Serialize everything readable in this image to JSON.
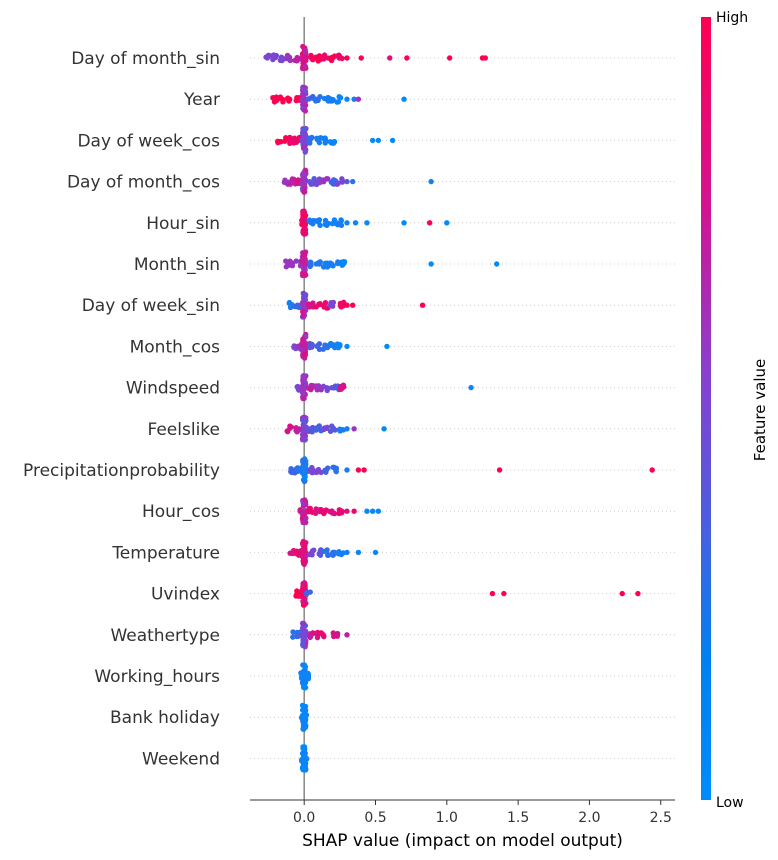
{
  "chart_data": {
    "type": "scatter",
    "subtype": "shap-beeswarm",
    "title": "",
    "xlabel": "SHAP value (impact on model output)",
    "ylabel": "",
    "xlim": [
      -0.38,
      2.6
    ],
    "xticks": [
      "0.0",
      "0.5",
      "1.0",
      "1.5",
      "2.0",
      "2.5"
    ],
    "grid": "horizontal dotted guides per feature",
    "colorbar": {
      "title": "Feature value",
      "high_label": "High",
      "low_label": "Low",
      "high_color": "#ff0051",
      "low_color": "#008bfb"
    },
    "features": [
      {
        "name": "Day of month_sin",
        "points": [
          [
            -0.25,
            0.5
          ],
          [
            -0.2,
            0.5
          ],
          [
            -0.15,
            0.5
          ],
          [
            -0.1,
            0.6
          ],
          [
            -0.05,
            0.7
          ],
          [
            0.0,
            0.8
          ],
          [
            0.05,
            0.95
          ],
          [
            0.1,
            1
          ],
          [
            0.15,
            0.9
          ],
          [
            0.2,
            1
          ],
          [
            0.25,
            0.9
          ],
          [
            0.3,
            1
          ],
          [
            0.4,
            0.95
          ],
          [
            0.6,
            0.85
          ],
          [
            0.72,
            1
          ],
          [
            1.02,
            1
          ],
          [
            1.25,
            1
          ],
          [
            1.27,
            1
          ]
        ]
      },
      {
        "name": "Year",
        "points": [
          [
            -0.2,
            1
          ],
          [
            -0.15,
            1
          ],
          [
            -0.1,
            1
          ],
          [
            -0.05,
            1
          ],
          [
            0.0,
            0.6
          ],
          [
            0.05,
            0.3
          ],
          [
            0.1,
            0.2
          ],
          [
            0.15,
            0.1
          ],
          [
            0.2,
            0.1
          ],
          [
            0.25,
            0.05
          ],
          [
            0.3,
            0.05
          ],
          [
            0.35,
            0.1
          ],
          [
            0.38,
            0.6
          ],
          [
            0.7,
            0.0
          ]
        ]
      },
      {
        "name": "Day of week_cos",
        "points": [
          [
            -0.18,
            1
          ],
          [
            -0.12,
            1
          ],
          [
            -0.08,
            0.9
          ],
          [
            -0.04,
            0.9
          ],
          [
            0.0,
            0.5
          ],
          [
            0.05,
            0.2
          ],
          [
            0.1,
            0.1
          ],
          [
            0.15,
            0.1
          ],
          [
            0.2,
            0.05
          ],
          [
            0.48,
            0.0
          ],
          [
            0.52,
            0.0
          ],
          [
            0.62,
            0.0
          ]
        ]
      },
      {
        "name": "Day of month_cos",
        "points": [
          [
            -0.12,
            0.6
          ],
          [
            -0.08,
            0.7
          ],
          [
            -0.04,
            0.8
          ],
          [
            0.0,
            0.6
          ],
          [
            0.05,
            0.4
          ],
          [
            0.1,
            0.5
          ],
          [
            0.15,
            0.6
          ],
          [
            0.2,
            0.3
          ],
          [
            0.25,
            0.5
          ],
          [
            0.3,
            0.4
          ],
          [
            0.34,
            0.2
          ],
          [
            0.89,
            0.1
          ]
        ]
      },
      {
        "name": "Hour_sin",
        "points": [
          [
            -0.02,
            1
          ],
          [
            0.0,
            0.9
          ],
          [
            0.05,
            0.1
          ],
          [
            0.1,
            0.1
          ],
          [
            0.15,
            0.1
          ],
          [
            0.2,
            0.05
          ],
          [
            0.25,
            0.1
          ],
          [
            0.3,
            0.05
          ],
          [
            0.36,
            0.05
          ],
          [
            0.44,
            0.05
          ],
          [
            0.7,
            0.0
          ],
          [
            0.88,
            1
          ],
          [
            1.0,
            0.0
          ]
        ]
      },
      {
        "name": "Month_sin",
        "points": [
          [
            -0.12,
            0.6
          ],
          [
            -0.08,
            0.6
          ],
          [
            -0.04,
            0.6
          ],
          [
            0.0,
            0.7
          ],
          [
            0.05,
            0.2
          ],
          [
            0.1,
            0.15
          ],
          [
            0.15,
            0.1
          ],
          [
            0.2,
            0.1
          ],
          [
            0.25,
            0.1
          ],
          [
            0.28,
            0.05
          ],
          [
            0.89,
            0.0
          ],
          [
            1.35,
            0.0
          ]
        ]
      },
      {
        "name": "Day of week_sin",
        "points": [
          [
            -0.1,
            0.1
          ],
          [
            -0.05,
            0.3
          ],
          [
            0.0,
            0.6
          ],
          [
            0.05,
            0.8
          ],
          [
            0.1,
            0.9
          ],
          [
            0.15,
            0.9
          ],
          [
            0.2,
            0.5
          ],
          [
            0.26,
            0.9
          ],
          [
            0.3,
            1
          ],
          [
            0.34,
            1
          ],
          [
            0.83,
            1
          ]
        ]
      },
      {
        "name": "Month_cos",
        "points": [
          [
            -0.06,
            0.5
          ],
          [
            -0.03,
            0.6
          ],
          [
            0.0,
            0.7
          ],
          [
            0.05,
            0.4
          ],
          [
            0.1,
            0.3
          ],
          [
            0.15,
            0.2
          ],
          [
            0.2,
            0.1
          ],
          [
            0.25,
            0.05
          ],
          [
            0.3,
            0.05
          ],
          [
            0.58,
            0.0
          ]
        ]
      },
      {
        "name": "Windspeed",
        "points": [
          [
            -0.05,
            0.5
          ],
          [
            0.0,
            0.6
          ],
          [
            0.05,
            0.7
          ],
          [
            0.1,
            0.6
          ],
          [
            0.15,
            0.5
          ],
          [
            0.2,
            0.4
          ],
          [
            0.24,
            0.3
          ],
          [
            0.27,
            0.8
          ],
          [
            1.17,
            0.05
          ]
        ]
      },
      {
        "name": "Feelslike",
        "points": [
          [
            -0.1,
            0.8
          ],
          [
            -0.05,
            0.7
          ],
          [
            0.0,
            0.5
          ],
          [
            0.05,
            0.4
          ],
          [
            0.1,
            0.3
          ],
          [
            0.15,
            0.5
          ],
          [
            0.2,
            0.4
          ],
          [
            0.26,
            0.1
          ],
          [
            0.3,
            0.1
          ],
          [
            0.35,
            0.6
          ],
          [
            0.56,
            0.0
          ]
        ]
      },
      {
        "name": "Precipitationprobability",
        "points": [
          [
            -0.08,
            0.3
          ],
          [
            -0.04,
            0.2
          ],
          [
            0.0,
            0.1
          ],
          [
            0.05,
            0.5
          ],
          [
            0.1,
            0.5
          ],
          [
            0.15,
            0.3
          ],
          [
            0.22,
            0.2
          ],
          [
            0.3,
            0.1
          ],
          [
            0.38,
            1
          ],
          [
            0.42,
            1
          ],
          [
            1.37,
            1
          ],
          [
            2.44,
            1
          ]
        ]
      },
      {
        "name": "Hour_cos",
        "points": [
          [
            -0.02,
            0.8
          ],
          [
            0.0,
            0.7
          ],
          [
            0.05,
            0.9
          ],
          [
            0.1,
            0.8
          ],
          [
            0.15,
            0.9
          ],
          [
            0.2,
            0.8
          ],
          [
            0.25,
            0.9
          ],
          [
            0.3,
            0.8
          ],
          [
            0.35,
            0.9
          ],
          [
            0.44,
            0.05
          ],
          [
            0.48,
            0.05
          ],
          [
            0.52,
            0.05
          ]
        ]
      },
      {
        "name": "Temperature",
        "points": [
          [
            -0.08,
            0.8
          ],
          [
            -0.04,
            0.9
          ],
          [
            0.0,
            0.8
          ],
          [
            0.05,
            0.5
          ],
          [
            0.1,
            0.4
          ],
          [
            0.15,
            0.2
          ],
          [
            0.2,
            0.2
          ],
          [
            0.26,
            0.1
          ],
          [
            0.3,
            0.1
          ],
          [
            0.38,
            0.05
          ],
          [
            0.5,
            0.05
          ]
        ]
      },
      {
        "name": "Uvindex",
        "points": [
          [
            -0.04,
            1
          ],
          [
            -0.02,
            1
          ],
          [
            0.0,
            0.9
          ],
          [
            0.03,
            0.3
          ],
          [
            1.32,
            1
          ],
          [
            1.4,
            1
          ],
          [
            2.23,
            1
          ],
          [
            2.34,
            1
          ]
        ]
      },
      {
        "name": "Weathertype",
        "points": [
          [
            -0.06,
            0.2
          ],
          [
            -0.03,
            0.3
          ],
          [
            0.0,
            0.5
          ],
          [
            0.04,
            0.7
          ],
          [
            0.08,
            0.8
          ],
          [
            0.12,
            0.9
          ],
          [
            0.22,
            0.8
          ],
          [
            0.3,
            0.7
          ]
        ]
      },
      {
        "name": "Working_hours",
        "points": [
          [
            -0.01,
            0.1
          ],
          [
            0.0,
            0.05
          ],
          [
            0.01,
            0.1
          ],
          [
            0.03,
            0.05
          ]
        ]
      },
      {
        "name": "Bank holiday",
        "points": [
          [
            0.0,
            0.05
          ],
          [
            0.0,
            0.05
          ]
        ]
      },
      {
        "name": "Weekend",
        "points": [
          [
            0.0,
            0.05
          ],
          [
            0.0,
            0.05
          ]
        ]
      }
    ]
  }
}
